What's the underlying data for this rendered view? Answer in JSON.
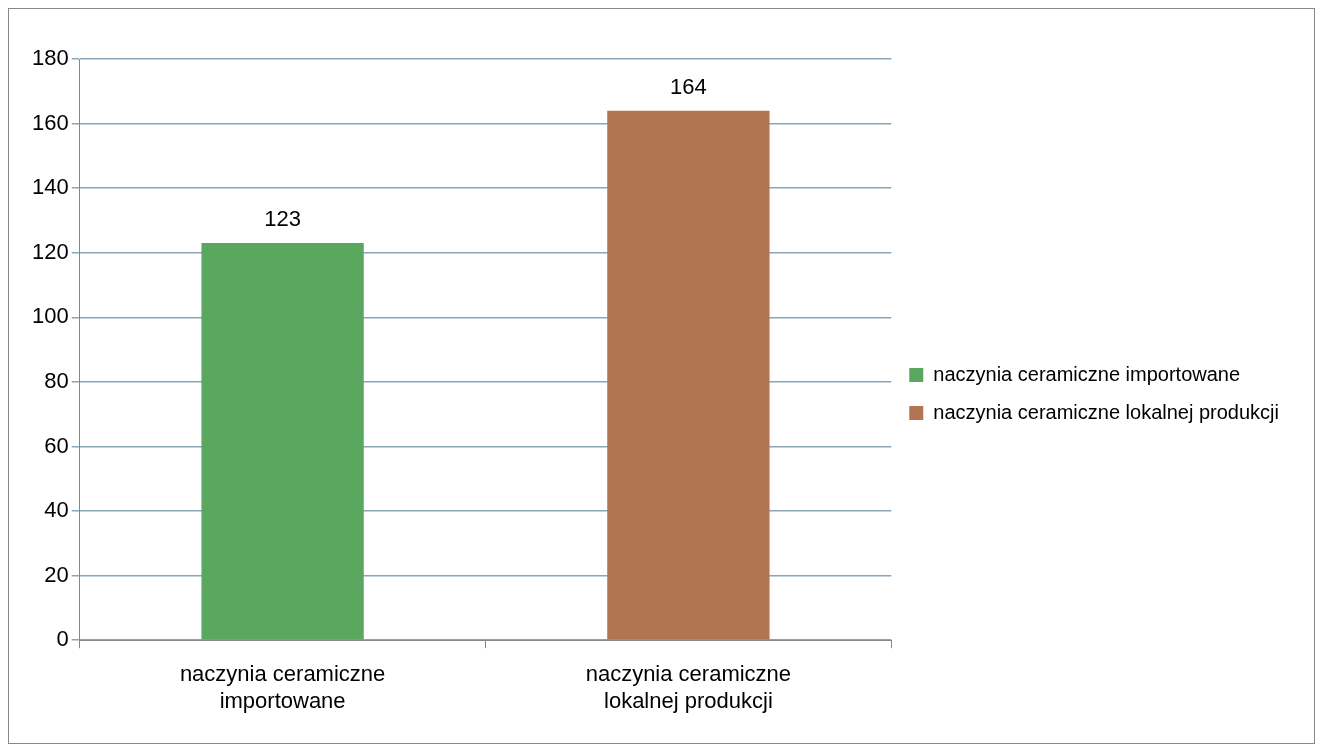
{
  "chart_data": {
    "type": "bar",
    "categories": [
      "naczynia ceramiczne importowane",
      "naczynia ceramiczne lokalnej produkcji"
    ],
    "series": [
      {
        "name": "naczynia ceramiczne importowane",
        "color": "#5aa860",
        "values": [
          123,
          null
        ]
      },
      {
        "name": "naczynia ceramiczne lokalnej produkcji",
        "color": "#b27552",
        "values": [
          null,
          164
        ]
      }
    ],
    "ylim": [
      0,
      180
    ],
    "yticks": [
      0,
      20,
      40,
      60,
      80,
      100,
      120,
      140,
      160,
      180
    ],
    "grid": "y",
    "legend": "right",
    "data_labels": true
  }
}
